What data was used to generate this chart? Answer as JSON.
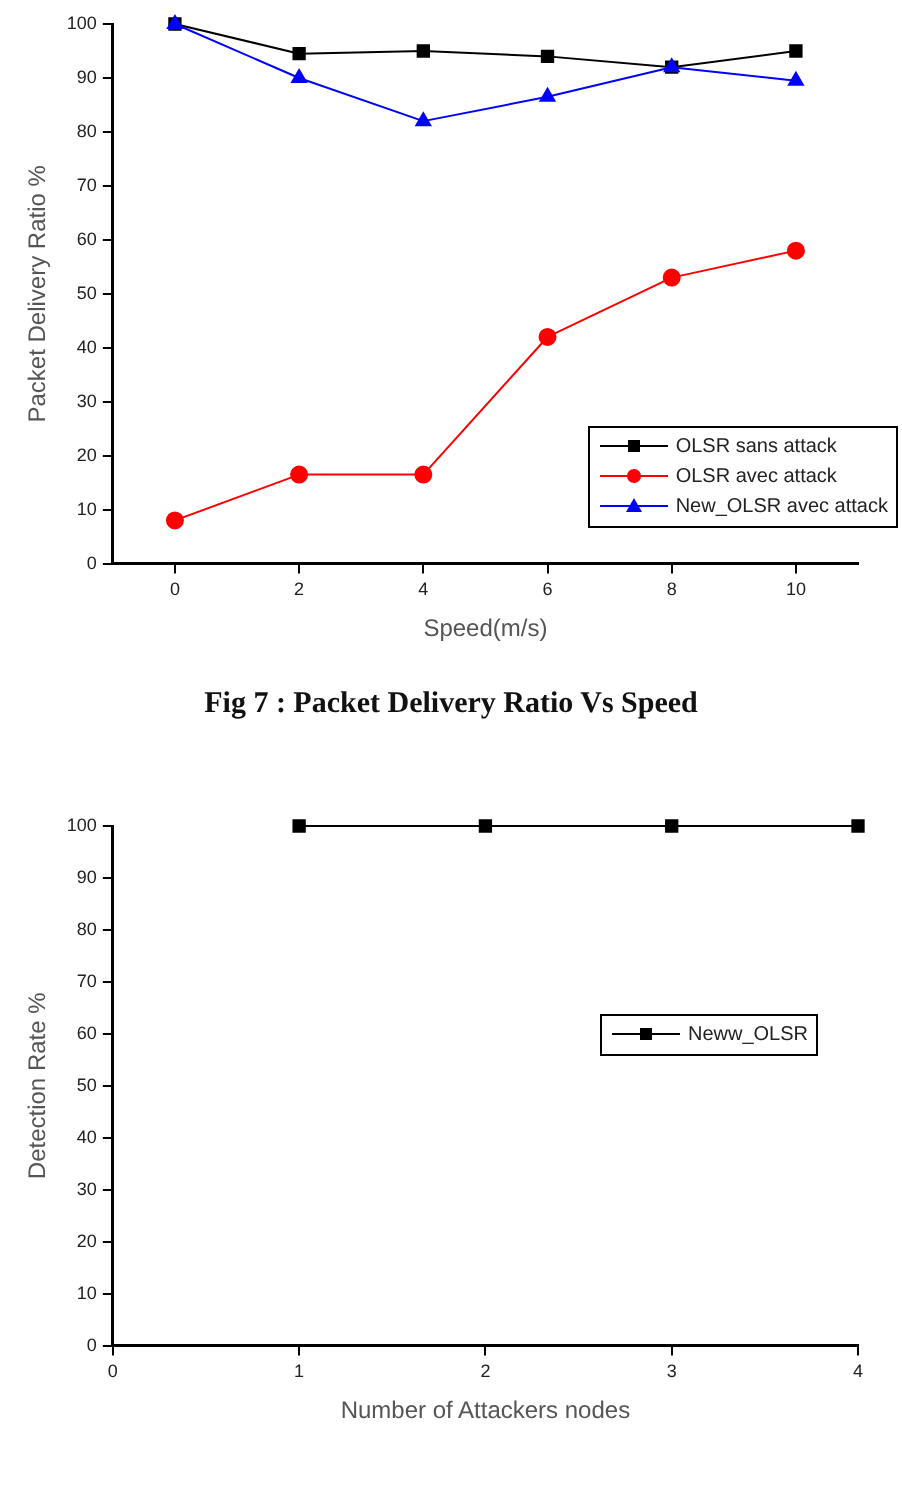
{
  "chart_data": [
    {
      "type": "line",
      "title": "Fig 7 : Packet Delivery Ratio Vs Speed",
      "xlabel": "Speed(m/s)",
      "ylabel": "Packet Delivery Ratio %",
      "xlim": [
        -1,
        11
      ],
      "xticks": [
        0,
        2,
        4,
        6,
        8,
        10
      ],
      "ylim": [
        0,
        100
      ],
      "yticks": [
        0,
        10,
        20,
        30,
        40,
        50,
        60,
        70,
        80,
        90,
        100
      ],
      "grid": false,
      "legend": "bottom right",
      "line_style": "solid",
      "series": [
        {
          "name": "OLSR sans attack",
          "color": "#000000",
          "marker": "square",
          "x": [
            0,
            2,
            4,
            6,
            8,
            10
          ],
          "values": [
            100,
            94.5,
            95,
            94,
            92,
            95
          ]
        },
        {
          "name": "OLSR avec attack",
          "color": "#ff0000",
          "marker": "circle",
          "x": [
            0,
            2,
            4,
            6,
            8,
            10
          ],
          "values": [
            8,
            16.5,
            16.5,
            42,
            53,
            58
          ]
        },
        {
          "name": "New_OLSR avec attack",
          "color": "#0000ff",
          "marker": "triangle",
          "x": [
            0,
            2,
            4,
            6,
            8,
            10
          ],
          "values": [
            100,
            90,
            82,
            86.5,
            92,
            89.5
          ]
        }
      ]
    },
    {
      "type": "line",
      "xlabel": "Number of Attackers nodes",
      "ylabel": "Detection Rate %",
      "xlim": [
        0,
        4
      ],
      "xticks": [
        0,
        1,
        2,
        3,
        4
      ],
      "ylim": [
        0,
        100
      ],
      "yticks": [
        0,
        10,
        20,
        30,
        40,
        50,
        60,
        70,
        80,
        90,
        100
      ],
      "grid": false,
      "legend": "right",
      "line_style": "solid",
      "marker": "square",
      "series": [
        {
          "name": "Neww_OLSR",
          "color": "#000000",
          "x": [
            1,
            2,
            3,
            4
          ],
          "values": [
            100,
            100,
            100,
            100
          ]
        }
      ]
    }
  ]
}
